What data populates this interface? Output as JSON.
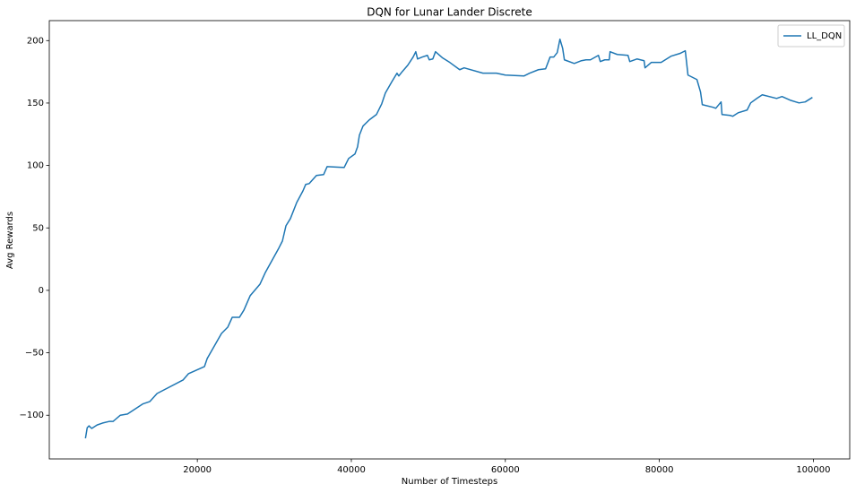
{
  "chart_data": {
    "type": "line",
    "title": "DQN for Lunar Lander Discrete",
    "x_label": "Number of Timesteps",
    "y_label": "Avg Rewards",
    "xlim": [
      775,
      104725
    ],
    "ylim": [
      -135,
      216
    ],
    "xticks": [
      20000,
      40000,
      60000,
      80000,
      100000
    ],
    "yticks": [
      {
        "value": -100,
        "label": "−100"
      },
      {
        "value": -50,
        "label": "−50"
      },
      0,
      50,
      100,
      150,
      200
    ],
    "grid": false,
    "legend": "upper right",
    "x": [
      5470,
      5700,
      5930,
      6280,
      6980,
      7670,
      8600,
      9070,
      10000,
      10930,
      12900,
      13840,
      14770,
      18140,
      18840,
      20930,
      21280,
      23140,
      23950,
      24530,
      25470,
      26050,
      26860,
      28140,
      28840,
      30580,
      31050,
      31510,
      32090,
      32910,
      33720,
      34070,
      34530,
      35470,
      36400,
      36860,
      39070,
      39650,
      40470,
      40810,
      41050,
      41510,
      42330,
      43260,
      43950,
      44420,
      45230,
      45930,
      46160,
      46630,
      47330,
      48020,
      48370,
      48600,
      49190,
      49880,
      50120,
      50580,
      50930,
      51860,
      52790,
      54070,
      54650,
      57090,
      58840,
      60000,
      62440,
      63140,
      64300,
      65230,
      65810,
      66280,
      66740,
      67090,
      67440,
      67670,
      68950,
      69880,
      70470,
      71050,
      72090,
      72330,
      72910,
      73490,
      73600,
      74530,
      75930,
      76160,
      77090,
      78020,
      78140,
      78950,
      80230,
      81510,
      82670,
      83370,
      83720,
      84880,
      85350,
      85580,
      86980,
      87330,
      88020,
      88140,
      89190,
      89530,
      90230,
      91400,
      91860,
      92670,
      93370,
      95230,
      95930,
      96980,
      98140,
      98950,
      99880
    ],
    "series": [
      {
        "name": "LL_DQN",
        "color": "#1f77b4",
        "values": [
          -118.5,
          -110,
          -108.5,
          -110.6,
          -107.8,
          -106.3,
          -104.9,
          -104.9,
          -100,
          -99,
          -91,
          -89,
          -82.6,
          -71.8,
          -66.8,
          -61,
          -54.6,
          -34.5,
          -29.5,
          -21.6,
          -21.6,
          -15.8,
          -4.3,
          5,
          14.4,
          33.8,
          39.5,
          51.7,
          57.5,
          70.4,
          79.7,
          84.8,
          85.5,
          92,
          92.7,
          99.1,
          98.4,
          105.6,
          109.2,
          115,
          124.3,
          131.5,
          136.5,
          140.8,
          149.4,
          158,
          166.7,
          173.9,
          171.7,
          175.3,
          180.3,
          186.8,
          191.1,
          185.3,
          186.8,
          188.2,
          184.6,
          185.3,
          191.1,
          186.1,
          182.5,
          176.7,
          178.2,
          173.9,
          173.9,
          172.4,
          171.7,
          173.9,
          176.7,
          177.4,
          186.8,
          186.8,
          190.4,
          201.1,
          193.9,
          184.6,
          181.7,
          183.9,
          184.6,
          184.6,
          188.2,
          183.2,
          184.6,
          184.6,
          191.1,
          188.9,
          188.2,
          183.2,
          185.3,
          183.9,
          178.2,
          182.5,
          182.5,
          187.5,
          189.7,
          191.8,
          172.4,
          168.8,
          158.8,
          148.7,
          146.6,
          145.8,
          150.9,
          140.8,
          140.1,
          139.4,
          142.2,
          144.4,
          150.1,
          153.7,
          156.6,
          153.7,
          155.2,
          152.3,
          150.1,
          150.9,
          154.5
        ]
      }
    ]
  }
}
